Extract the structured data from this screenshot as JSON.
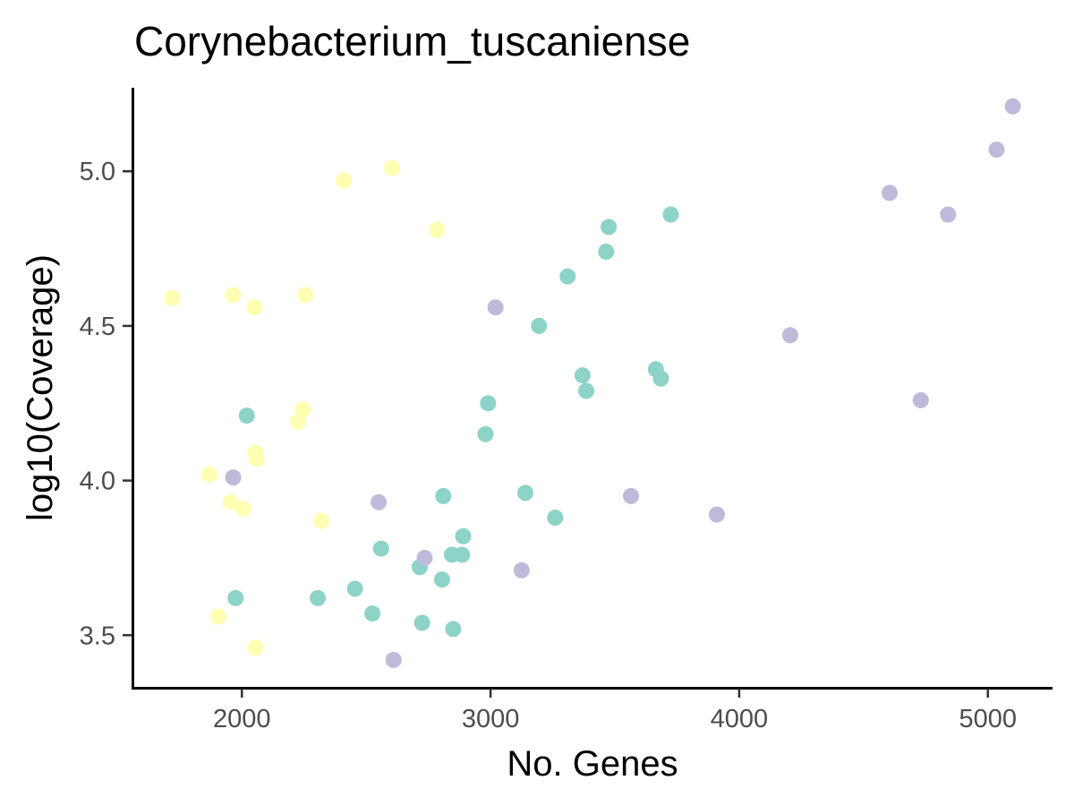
{
  "chart_data": {
    "type": "scatter",
    "title": "Corynebacterium_tuscaniense",
    "xlabel": "No. Genes",
    "ylabel": "log10(Coverage)",
    "xlim": [
      1560,
      5260
    ],
    "ylim": [
      3.33,
      5.27
    ],
    "x_ticks": [
      2000,
      3000,
      4000,
      5000
    ],
    "x_tick_labels": [
      "2000",
      "3000",
      "4000",
      "5000"
    ],
    "y_ticks": [
      3.5,
      4.0,
      4.5,
      5.0
    ],
    "y_tick_labels": [
      "3.5",
      "4.0",
      "4.5",
      "5.0"
    ],
    "grid": false,
    "legend": "none",
    "series": [
      {
        "color": "#ffffb3",
        "points": [
          {
            "x": 1720,
            "y": 4.59
          },
          {
            "x": 1965,
            "y": 4.6
          },
          {
            "x": 2050,
            "y": 4.56
          },
          {
            "x": 2255,
            "y": 4.6
          },
          {
            "x": 2410,
            "y": 4.97
          },
          {
            "x": 2605,
            "y": 5.01
          },
          {
            "x": 2785,
            "y": 4.81
          },
          {
            "x": 2245,
            "y": 4.23
          },
          {
            "x": 2225,
            "y": 4.19
          },
          {
            "x": 2055,
            "y": 4.09
          },
          {
            "x": 2060,
            "y": 4.07
          },
          {
            "x": 1870,
            "y": 4.02
          },
          {
            "x": 1955,
            "y": 3.93
          },
          {
            "x": 2005,
            "y": 3.91
          },
          {
            "x": 2320,
            "y": 3.87
          },
          {
            "x": 1905,
            "y": 3.56
          },
          {
            "x": 2055,
            "y": 3.46
          }
        ]
      },
      {
        "color": "#8dd3c7",
        "points": [
          {
            "x": 2020,
            "y": 4.21
          },
          {
            "x": 1975,
            "y": 3.62
          },
          {
            "x": 2305,
            "y": 3.62
          },
          {
            "x": 2455,
            "y": 3.65
          },
          {
            "x": 2525,
            "y": 3.57
          },
          {
            "x": 2560,
            "y": 3.78
          },
          {
            "x": 2715,
            "y": 3.72
          },
          {
            "x": 2725,
            "y": 3.54
          },
          {
            "x": 2805,
            "y": 3.68
          },
          {
            "x": 2810,
            "y": 3.95
          },
          {
            "x": 2845,
            "y": 3.76
          },
          {
            "x": 2850,
            "y": 3.52
          },
          {
            "x": 2885,
            "y": 3.76
          },
          {
            "x": 2890,
            "y": 3.82
          },
          {
            "x": 2980,
            "y": 4.15
          },
          {
            "x": 2990,
            "y": 4.25
          },
          {
            "x": 3140,
            "y": 3.96
          },
          {
            "x": 3195,
            "y": 4.5
          },
          {
            "x": 3260,
            "y": 3.88
          },
          {
            "x": 3310,
            "y": 4.66
          },
          {
            "x": 3370,
            "y": 4.34
          },
          {
            "x": 3385,
            "y": 4.29
          },
          {
            "x": 3465,
            "y": 4.74
          },
          {
            "x": 3475,
            "y": 4.82
          },
          {
            "x": 3665,
            "y": 4.36
          },
          {
            "x": 3685,
            "y": 4.33
          },
          {
            "x": 3725,
            "y": 4.86
          }
        ]
      },
      {
        "color": "#bebada",
        "points": [
          {
            "x": 1965,
            "y": 4.01
          },
          {
            "x": 2550,
            "y": 3.93
          },
          {
            "x": 2610,
            "y": 3.42
          },
          {
            "x": 2735,
            "y": 3.75
          },
          {
            "x": 3020,
            "y": 4.56
          },
          {
            "x": 3125,
            "y": 3.71
          },
          {
            "x": 3565,
            "y": 3.95
          },
          {
            "x": 3910,
            "y": 3.89
          },
          {
            "x": 4205,
            "y": 4.47
          },
          {
            "x": 4605,
            "y": 4.93
          },
          {
            "x": 4730,
            "y": 4.26
          },
          {
            "x": 4840,
            "y": 4.86
          },
          {
            "x": 5035,
            "y": 5.07
          },
          {
            "x": 5100,
            "y": 5.21
          }
        ]
      }
    ]
  }
}
